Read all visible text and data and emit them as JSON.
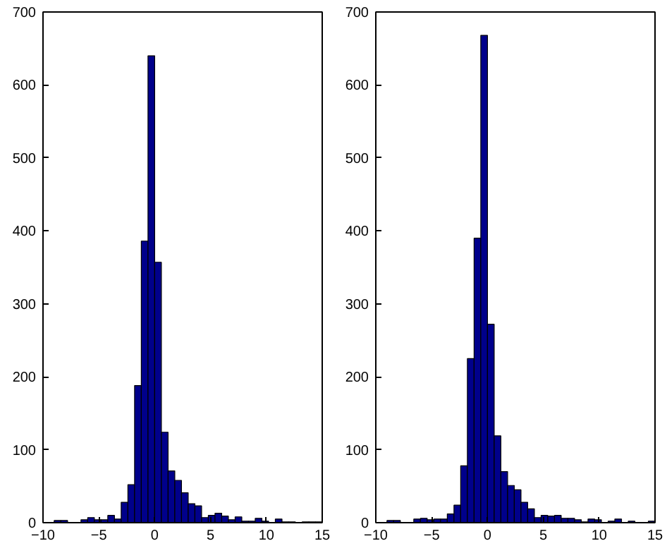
{
  "chart_data": [
    {
      "type": "histogram",
      "color": "#00008b",
      "xlim": [
        -10,
        15
      ],
      "ylim": [
        0,
        700
      ],
      "xticks": [
        -10,
        -5,
        0,
        5,
        10,
        15
      ],
      "yticks": [
        0,
        100,
        200,
        300,
        400,
        500,
        600,
        700
      ],
      "grid": false,
      "bins": [
        -9,
        -8.4,
        -7.8,
        -7.2,
        -6.6,
        -6,
        -5.4,
        -4.8,
        -4.2,
        -3.6,
        -3,
        -2.4,
        -1.8,
        -1.2,
        -0.6,
        0,
        0.6,
        1.2,
        1.8,
        2.4,
        3,
        3.6,
        4.2,
        4.8,
        5.4,
        6,
        6.6,
        7.2,
        7.8,
        8.4,
        9,
        9.6,
        10.2,
        10.8,
        11.4,
        12,
        12.6,
        13.2,
        13.8,
        14.4,
        15
      ],
      "values": [
        3,
        3,
        0,
        0,
        4,
        7,
        4,
        4,
        10,
        5,
        28,
        52,
        188,
        386,
        640,
        357,
        124,
        71,
        58,
        41,
        26,
        23,
        7,
        10,
        13,
        9,
        4,
        8,
        2,
        2,
        6,
        2,
        0,
        5,
        1,
        1,
        0,
        1,
        1,
        1
      ]
    },
    {
      "type": "histogram",
      "color": "#00008b",
      "xlim": [
        -10,
        15
      ],
      "ylim": [
        0,
        700
      ],
      "xticks": [
        -10,
        -5,
        0,
        5,
        10,
        15
      ],
      "yticks": [
        0,
        100,
        200,
        300,
        400,
        500,
        600,
        700
      ],
      "grid": false,
      "bins": [
        -9,
        -8.4,
        -7.8,
        -7.2,
        -6.6,
        -6,
        -5.4,
        -4.8,
        -4.2,
        -3.6,
        -3,
        -2.4,
        -1.8,
        -1.2,
        -0.6,
        0,
        0.6,
        1.2,
        1.8,
        2.4,
        3,
        3.6,
        4.2,
        4.8,
        5.4,
        6,
        6.6,
        7.2,
        7.8,
        8.4,
        9,
        9.6,
        10.2,
        10.8,
        11.4,
        12,
        12.6,
        13.2,
        13.8,
        14.4,
        15
      ],
      "values": [
        3,
        3,
        0,
        0,
        5,
        6,
        4,
        5,
        5,
        12,
        24,
        78,
        225,
        390,
        668,
        272,
        119,
        70,
        51,
        45,
        28,
        19,
        7,
        10,
        9,
        10,
        6,
        6,
        4,
        1,
        5,
        4,
        0,
        2,
        5,
        0,
        2,
        0,
        0,
        2
      ]
    }
  ]
}
